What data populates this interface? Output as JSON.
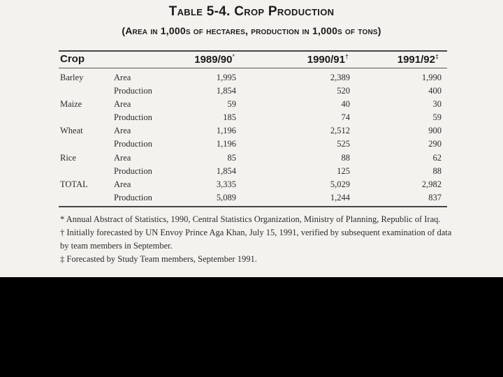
{
  "table": {
    "title": "Table 5-4. Crop Production",
    "subtitle": "(Area in 1,000s of hectares, production in 1,000s of tons)",
    "headers": {
      "crop": "Crop",
      "col1": "1989/90",
      "col1_mark": "*",
      "col2": "1990/91",
      "col2_mark": "†",
      "col3": "1991/92",
      "col3_mark": "‡"
    },
    "rows": [
      {
        "crop": "Barley",
        "measure": "Area",
        "v1": "1,995",
        "v2": "2,389",
        "v3": "1,990"
      },
      {
        "crop": "",
        "measure": "Production",
        "v1": "1,854",
        "v2": "520",
        "v3": "400"
      },
      {
        "crop": "Maize",
        "measure": "Area",
        "v1": "59",
        "v2": "40",
        "v3": "30"
      },
      {
        "crop": "",
        "measure": "Production",
        "v1": "185",
        "v2": "74",
        "v3": "59"
      },
      {
        "crop": "Wheat",
        "measure": "Area",
        "v1": "1,196",
        "v2": "2,512",
        "v3": "900"
      },
      {
        "crop": "",
        "measure": "Production",
        "v1": "1,196",
        "v2": "525",
        "v3": "290"
      },
      {
        "crop": "Rice",
        "measure": "Area",
        "v1": "85",
        "v2": "88",
        "v3": "62"
      },
      {
        "crop": "",
        "measure": "Production",
        "v1": "1,854",
        "v2": "125",
        "v3": "88"
      },
      {
        "crop": "TOTAL",
        "measure": "Area",
        "v1": "3,335",
        "v2": "5,029",
        "v3": "2,982"
      },
      {
        "crop": "",
        "measure": "Production",
        "v1": "5,089",
        "v2": "1,244",
        "v3": "837"
      }
    ]
  },
  "footnotes": [
    "* Annual Abstract of Statistics, 1990, Central Statistics Organization, Ministry of Planning, Republic of Iraq.",
    "† Initially forecasted by UN Envoy Prince Aga Khan, July 15, 1991, verified by subsequent examination of data",
    "by team members in September.",
    "‡ Forecasted by Study Team members, September 1991."
  ]
}
